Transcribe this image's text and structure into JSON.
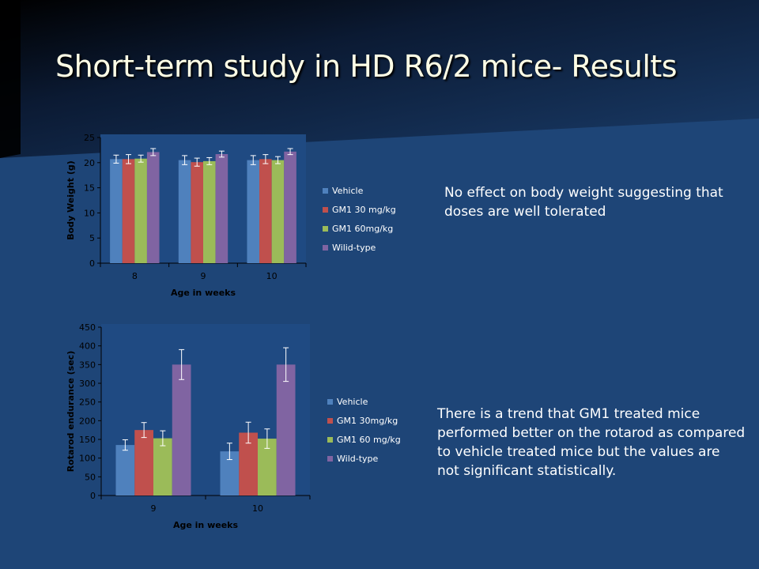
{
  "slide": {
    "title": "Short-term study in HD  R6/2 mice- Results",
    "note_weight": "No effect on body weight suggesting that doses are well tolerated",
    "note_rotarod": "There is a trend that GM1 treated  mice performed  better on the rotarod as compared to vehicle treated mice but the  values are not significant statistically."
  },
  "colors": {
    "background": "#1e4577",
    "Vehicle": "#4f81bd",
    "GM1": "#c0504d",
    "GM1_high": "#9bbb59",
    "Wild-type": "#8064a2"
  },
  "chart_data": [
    {
      "type": "bar",
      "categories": [
        "8",
        "9",
        "10"
      ],
      "xlabel": "Age in  weeks",
      "ylabel": "Body  Weight  (g)",
      "ylim": [
        0,
        25
      ],
      "yticks": [
        0,
        5,
        10,
        15,
        20,
        25
      ],
      "legend_position": "right",
      "series": [
        {
          "name": "Vehicle",
          "values": [
            20.7,
            20.5,
            20.5
          ],
          "errors": [
            0.8,
            0.9,
            0.9
          ],
          "color": "#4f81bd"
        },
        {
          "name": "GM1  30 mg/kg",
          "values": [
            20.7,
            20.1,
            20.7
          ],
          "errors": [
            0.9,
            0.8,
            0.9
          ],
          "color": "#c0504d"
        },
        {
          "name": "GM1  60mg/kg",
          "values": [
            20.8,
            20.3,
            20.5
          ],
          "errors": [
            0.7,
            0.7,
            0.7
          ],
          "color": "#9bbb59"
        },
        {
          "name": "Wilid-type",
          "values": [
            22.1,
            21.7,
            22.2
          ],
          "errors": [
            0.7,
            0.6,
            0.6
          ],
          "color": "#8064a2"
        }
      ]
    },
    {
      "type": "bar",
      "categories": [
        "9",
        "10"
      ],
      "xlabel": "Age in  weeks",
      "ylabel": "Rotarod endurance  (sec)",
      "ylim": [
        0,
        450
      ],
      "yticks": [
        0,
        50,
        100,
        150,
        200,
        250,
        300,
        350,
        400,
        450
      ],
      "legend_position": "right",
      "series": [
        {
          "name": "Vehicle",
          "values": [
            135,
            118
          ],
          "errors": [
            14,
            22
          ],
          "color": "#4f81bd"
        },
        {
          "name": "GM1  30mg/kg",
          "values": [
            175,
            168
          ],
          "errors": [
            20,
            28
          ],
          "color": "#c0504d"
        },
        {
          "name": "GM1  60 mg/kg",
          "values": [
            153,
            152
          ],
          "errors": [
            20,
            26
          ],
          "color": "#9bbb59"
        },
        {
          "name": "Wild-type",
          "values": [
            350,
            350
          ],
          "errors": [
            40,
            45
          ],
          "color": "#8064a2"
        }
      ]
    }
  ]
}
